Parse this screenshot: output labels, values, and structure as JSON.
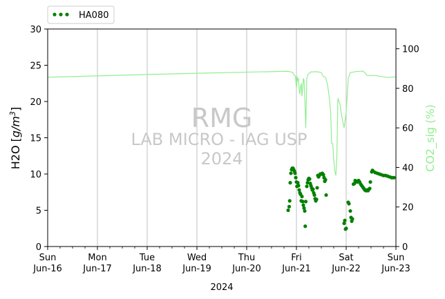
{
  "chart_data": {
    "type": "scatter",
    "title": "",
    "xlabel": "2024",
    "x_ticks": [
      {
        "date": "2024-06-16",
        "day": "Sun",
        "label": "Jun-16"
      },
      {
        "date": "2024-06-17",
        "day": "Mon",
        "label": "Jun-17"
      },
      {
        "date": "2024-06-18",
        "day": "Tue",
        "label": "Jun-18"
      },
      {
        "date": "2024-06-19",
        "day": "Wed",
        "label": "Jun-19"
      },
      {
        "date": "2024-06-20",
        "day": "Thu",
        "label": "Jun-20"
      },
      {
        "date": "2024-06-21",
        "day": "Fri",
        "label": "Jun-21"
      },
      {
        "date": "2024-06-22",
        "day": "Sat",
        "label": "Jun-22"
      },
      {
        "date": "2024-06-23",
        "day": "Sun",
        "label": "Jun-23"
      }
    ],
    "xlim": [
      "2024-06-16 00:00",
      "2024-06-23 00:00"
    ],
    "grid": "vertical lines at each day tick",
    "y_left": {
      "label_prefix": "H2O [",
      "label_unit_base": "g/m",
      "label_unit_exp": "3",
      "label_suffix": "]",
      "lim": [
        0,
        30
      ],
      "ticks": [
        0,
        5,
        10,
        15,
        20,
        25,
        30
      ]
    },
    "y_right": {
      "label": "CO2_sig (%)",
      "lim": [
        0,
        110
      ],
      "ticks": [
        0,
        20,
        40,
        60,
        80,
        100
      ],
      "color": "#90ee90"
    },
    "legend": {
      "position": "top-left, above plot",
      "entries": [
        "HA080"
      ]
    },
    "watermark": {
      "lines": [
        "RMG",
        "LAB MICRO - IAG USP",
        "2024"
      ]
    },
    "series": [
      {
        "name": "HA080",
        "axis": "left",
        "style": "dots",
        "color": "#008000",
        "points": [
          [
            "2024-06-20 20:00",
            5.0
          ],
          [
            "2024-06-20 20:30",
            5.5
          ],
          [
            "2024-06-20 20:45",
            6.3
          ],
          [
            "2024-06-20 21:00",
            8.8
          ],
          [
            "2024-06-20 21:20",
            10.1
          ],
          [
            "2024-06-20 21:40",
            10.6
          ],
          [
            "2024-06-20 22:00",
            10.8
          ],
          [
            "2024-06-20 22:20",
            10.8
          ],
          [
            "2024-06-20 22:40",
            10.6
          ],
          [
            "2024-06-20 23:00",
            10.4
          ],
          [
            "2024-06-20 23:20",
            10.1
          ],
          [
            "2024-06-20 23:40",
            9.5
          ],
          [
            "2024-06-21 00:00",
            8.9
          ],
          [
            "2024-06-21 00:15",
            8.3
          ],
          [
            "2024-06-21 00:40",
            8.8
          ],
          [
            "2024-06-21 01:00",
            8.4
          ],
          [
            "2024-06-21 01:20",
            7.8
          ],
          [
            "2024-06-21 01:40",
            7.4
          ],
          [
            "2024-06-21 02:00",
            7.2
          ],
          [
            "2024-06-21 02:20",
            6.3
          ],
          [
            "2024-06-21 02:40",
            6.9
          ],
          [
            "2024-06-21 03:00",
            6.2
          ],
          [
            "2024-06-21 03:20",
            5.7
          ],
          [
            "2024-06-21 03:40",
            5.3
          ],
          [
            "2024-06-21 04:00",
            4.9
          ],
          [
            "2024-06-21 04:15",
            2.8
          ],
          [
            "2024-06-21 04:30",
            6.2
          ],
          [
            "2024-06-21 05:00",
            8.3
          ],
          [
            "2024-06-21 05:20",
            8.8
          ],
          [
            "2024-06-21 05:40",
            9.2
          ],
          [
            "2024-06-21 06:00",
            9.4
          ],
          [
            "2024-06-21 06:20",
            9.3
          ],
          [
            "2024-06-21 06:40",
            8.7
          ],
          [
            "2024-06-21 07:00",
            8.4
          ],
          [
            "2024-06-21 07:20",
            8.1
          ],
          [
            "2024-06-21 07:40",
            7.8
          ],
          [
            "2024-06-21 08:00",
            7.9
          ],
          [
            "2024-06-21 08:20",
            7.4
          ],
          [
            "2024-06-21 08:40",
            7.1
          ],
          [
            "2024-06-21 09:00",
            6.6
          ],
          [
            "2024-06-21 09:20",
            6.3
          ],
          [
            "2024-06-21 09:40",
            6.5
          ],
          [
            "2024-06-21 10:00",
            8.1
          ],
          [
            "2024-06-21 10:20",
            9.8
          ],
          [
            "2024-06-21 10:40",
            9.6
          ],
          [
            "2024-06-21 11:00",
            9.8
          ],
          [
            "2024-06-21 11:30",
            10.0
          ],
          [
            "2024-06-21 12:00",
            10.0
          ],
          [
            "2024-06-21 12:30",
            10.1
          ],
          [
            "2024-06-21 13:00",
            9.9
          ],
          [
            "2024-06-21 13:20",
            9.5
          ],
          [
            "2024-06-21 13:40",
            9.0
          ],
          [
            "2024-06-21 14:00",
            9.2
          ],
          [
            "2024-06-21 14:20",
            7.1
          ],
          [
            "2024-06-21 23:00",
            3.2
          ],
          [
            "2024-06-21 23:20",
            3.6
          ],
          [
            "2024-06-21 23:40",
            2.4
          ],
          [
            "2024-06-22 00:00",
            2.5
          ],
          [
            "2024-06-22 01:00",
            6.1
          ],
          [
            "2024-06-22 01:20",
            5.9
          ],
          [
            "2024-06-22 02:00",
            4.9
          ],
          [
            "2024-06-22 02:20",
            4.0
          ],
          [
            "2024-06-22 02:40",
            3.5
          ],
          [
            "2024-06-22 03:00",
            3.8
          ],
          [
            "2024-06-22 03:30",
            8.6
          ],
          [
            "2024-06-22 04:00",
            8.7
          ],
          [
            "2024-06-22 04:20",
            9.1
          ],
          [
            "2024-06-22 05:00",
            9.0
          ],
          [
            "2024-06-22 05:30",
            8.9
          ],
          [
            "2024-06-22 06:00",
            9.1
          ],
          [
            "2024-06-22 06:30",
            8.9
          ],
          [
            "2024-06-22 07:00",
            8.6
          ],
          [
            "2024-06-22 07:30",
            8.4
          ],
          [
            "2024-06-22 08:00",
            8.2
          ],
          [
            "2024-06-22 08:30",
            8.0
          ],
          [
            "2024-06-22 09:00",
            7.8
          ],
          [
            "2024-06-22 09:30",
            7.7
          ],
          [
            "2024-06-22 10:00",
            7.8
          ],
          [
            "2024-06-22 10:30",
            7.7
          ],
          [
            "2024-06-22 11:00",
            7.9
          ],
          [
            "2024-06-22 11:20",
            8.0
          ],
          [
            "2024-06-22 11:40",
            8.9
          ],
          [
            "2024-06-22 12:20",
            10.3
          ],
          [
            "2024-06-22 12:40",
            10.5
          ],
          [
            "2024-06-22 13:00",
            10.4
          ],
          [
            "2024-06-22 14:00",
            10.2
          ],
          [
            "2024-06-22 15:00",
            10.1
          ],
          [
            "2024-06-22 16:00",
            10.0
          ],
          [
            "2024-06-22 17:00",
            9.9
          ],
          [
            "2024-06-22 18:00",
            9.8
          ],
          [
            "2024-06-22 19:00",
            9.8
          ],
          [
            "2024-06-22 20:00",
            9.7
          ],
          [
            "2024-06-22 21:00",
            9.6
          ],
          [
            "2024-06-22 22:00",
            9.5
          ],
          [
            "2024-06-22 23:00",
            9.5
          ]
        ]
      },
      {
        "name": "CO2_sig",
        "axis": "right",
        "style": "line",
        "color": "#90ee90",
        "points": [
          [
            "2024-06-16 00:00",
            85.6
          ],
          [
            "2024-06-17 00:00",
            86.3
          ],
          [
            "2024-06-18 00:00",
            87.0
          ],
          [
            "2024-06-19 00:00",
            87.6
          ],
          [
            "2024-06-20 00:00",
            88.2
          ],
          [
            "2024-06-20 20:00",
            88.6
          ],
          [
            "2024-06-20 22:00",
            88.1
          ],
          [
            "2024-06-20 23:30",
            86.0
          ],
          [
            "2024-06-21 00:00",
            80.0
          ],
          [
            "2024-06-21 00:20",
            86.0
          ],
          [
            "2024-06-21 00:40",
            84.0
          ],
          [
            "2024-06-21 01:00",
            85.0
          ],
          [
            "2024-06-21 01:20",
            79.0
          ],
          [
            "2024-06-21 01:40",
            77.0
          ],
          [
            "2024-06-21 02:00",
            81.0
          ],
          [
            "2024-06-21 02:20",
            82.5
          ],
          [
            "2024-06-21 02:40",
            76.0
          ],
          [
            "2024-06-21 03:00",
            80.0
          ],
          [
            "2024-06-21 03:20",
            85.0
          ],
          [
            "2024-06-21 03:40",
            84.0
          ],
          [
            "2024-06-21 04:00",
            76.0
          ],
          [
            "2024-06-21 04:30",
            60.0
          ],
          [
            "2024-06-21 05:00",
            85.0
          ],
          [
            "2024-06-21 05:30",
            87.0
          ],
          [
            "2024-06-21 07:00",
            88.3
          ],
          [
            "2024-06-21 10:00",
            88.4
          ],
          [
            "2024-06-21 12:00",
            88.0
          ],
          [
            "2024-06-21 13:00",
            86.0
          ],
          [
            "2024-06-21 14:00",
            85.5
          ],
          [
            "2024-06-21 15:00",
            82.0
          ],
          [
            "2024-06-21 16:00",
            74.0
          ],
          [
            "2024-06-21 16:30",
            68.0
          ],
          [
            "2024-06-21 17:00",
            52.0
          ],
          [
            "2024-06-21 17:30",
            52.0
          ],
          [
            "2024-06-21 18:00",
            44.0
          ],
          [
            "2024-06-21 18:30",
            38.0
          ],
          [
            "2024-06-21 19:00",
            36.0
          ],
          [
            "2024-06-21 19:30",
            45.0
          ],
          [
            "2024-06-21 20:00",
            75.0
          ],
          [
            "2024-06-21 21:00",
            72.0
          ],
          [
            "2024-06-21 22:00",
            65.0
          ],
          [
            "2024-06-21 23:00",
            60.0
          ],
          [
            "2024-06-22 00:00",
            68.0
          ],
          [
            "2024-06-22 01:00",
            85.0
          ],
          [
            "2024-06-22 02:00",
            88.0
          ],
          [
            "2024-06-22 05:00",
            88.5
          ],
          [
            "2024-06-22 08:00",
            88.7
          ],
          [
            "2024-06-22 09:00",
            88.0
          ],
          [
            "2024-06-22 10:00",
            86.5
          ],
          [
            "2024-06-22 14:00",
            86.5
          ],
          [
            "2024-06-22 20:00",
            85.5
          ],
          [
            "2024-06-22 23:59",
            85.8
          ]
        ]
      }
    ]
  }
}
